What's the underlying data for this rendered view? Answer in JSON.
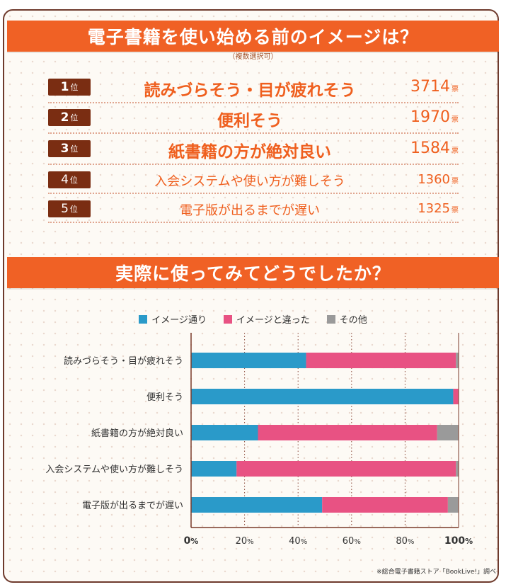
{
  "ranking": {
    "title": "電子書籍を使い始める前のイメージは？",
    "subtitle": "（複数選択可）",
    "rank_suffix": "位",
    "vote_unit": "票",
    "items": [
      {
        "rank": "1",
        "label": "読みづらそう・目が疲れそう",
        "votes": "3714"
      },
      {
        "rank": "2",
        "label": "便利そう",
        "votes": "1970"
      },
      {
        "rank": "3",
        "label": "紙書籍の方が絶対良い",
        "votes": "1584"
      },
      {
        "rank": "4",
        "label": "入会システムや使い方が難しそう",
        "votes": "1360"
      },
      {
        "rank": "5",
        "label": "電子版が出るまでが遅い",
        "votes": "1325"
      }
    ]
  },
  "chart_title": "実際に使ってみてどうでしたか？",
  "chart_data": {
    "type": "bar",
    "orientation": "horizontal-stacked",
    "categories": [
      "読みづらそう・目が疲れそう",
      "便利そう",
      "紙書籍の方が絶対良い",
      "入会システムや使い方が難しそう",
      "電子版が出るまでが遅い"
    ],
    "series": [
      {
        "name": "イメージ通り",
        "color": "#2a9ac9",
        "values": [
          43,
          98,
          25,
          17,
          49
        ]
      },
      {
        "name": "イメージと違った",
        "color": "#e85283",
        "values": [
          56,
          2,
          67,
          82,
          47
        ]
      },
      {
        "name": "その他",
        "color": "#9a9a9a",
        "values": [
          1,
          0,
          8,
          1,
          4
        ]
      }
    ],
    "x_ticks": [
      {
        "num": "0",
        "unit": "%"
      },
      {
        "num": "20",
        "unit": "%"
      },
      {
        "num": "40",
        "unit": "%"
      },
      {
        "num": "60",
        "unit": "%"
      },
      {
        "num": "80",
        "unit": "%"
      },
      {
        "num": "100",
        "unit": "%"
      }
    ],
    "xlim": [
      0,
      100
    ],
    "legend_position": "top-center"
  },
  "source_note": "※総合電子書籍ストア「BookLive!」調べ"
}
